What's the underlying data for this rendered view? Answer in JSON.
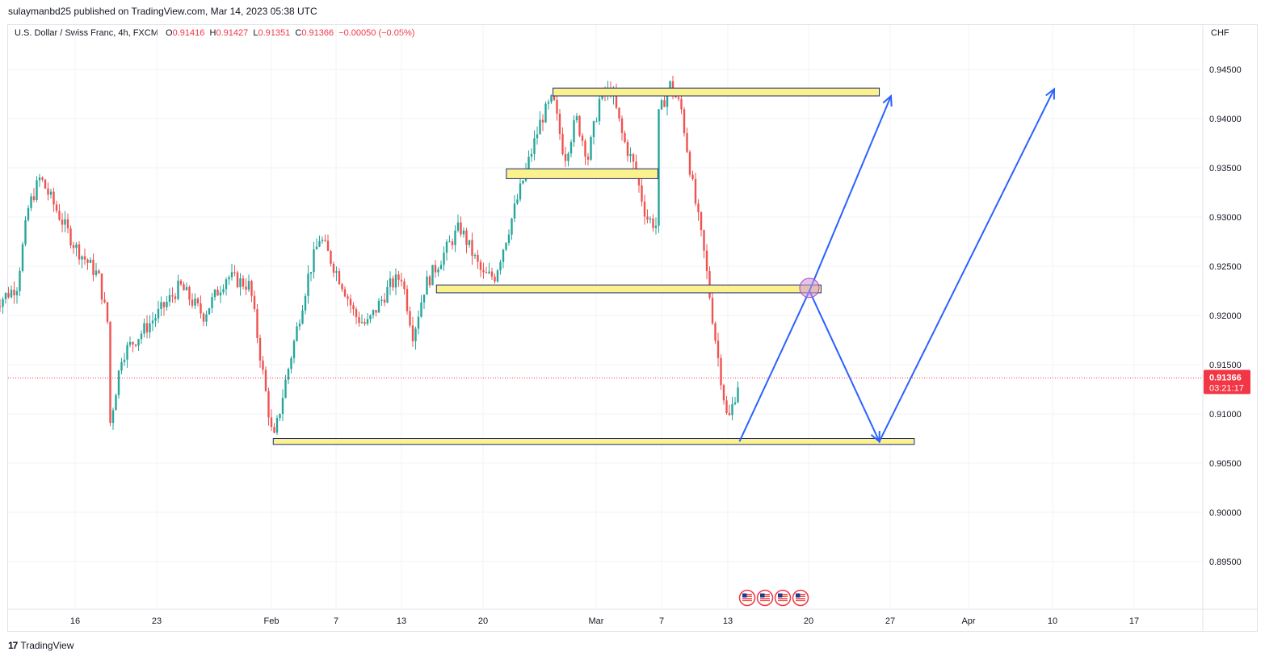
{
  "header": {
    "publisher_line": "sulaymanbd25 published on TradingView.com, Mar 14, 2023 05:38 UTC"
  },
  "legend": {
    "symbol": "U.S. Dollar / Swiss Franc, 4h, FXCM",
    "o_label": "O",
    "o_value": "0.91416",
    "h_label": "H",
    "h_value": "0.91427",
    "l_label": "L",
    "l_value": "0.91351",
    "c_label": "C",
    "c_value": "0.91366",
    "change": "−0.00050 (−0.05%)"
  },
  "currency_label": "CHF",
  "price_tag": {
    "price": "0.91366",
    "countdown": "03:21:17"
  },
  "footer": {
    "brand": "TradingView",
    "logo_glyph": "17"
  },
  "colors": {
    "up": "#26a69a",
    "down": "#ef5350",
    "zone_fill": "#fcf28c",
    "zone_stroke": "#2962ff",
    "arrow": "#2962ff",
    "price_line": "#f23645",
    "grid": "#f0f3fa"
  },
  "icons": [
    "us-flag-event-icon",
    "us-flag-event-icon",
    "us-flag-event-icon",
    "us-flag-event-icon"
  ],
  "chart_data": {
    "type": "candlestick",
    "symbol": "USDCHF",
    "timeframe": "4h",
    "y_axis": {
      "ticks": [
        "0.94500",
        "0.94000",
        "0.93500",
        "0.93000",
        "0.92500",
        "0.92000",
        "0.91500",
        "0.91000",
        "0.90500",
        "0.90000",
        "0.89500"
      ],
      "ylim": [
        0.891,
        0.9485
      ]
    },
    "x_axis": {
      "ticks": [
        "16",
        "23",
        "Feb",
        "7",
        "13",
        "20",
        "Mar",
        "7",
        "13",
        "20",
        "27",
        "Apr",
        "10",
        "17"
      ]
    },
    "current_price": 0.91366,
    "price_path": [
      {
        "date": "2023-01-09",
        "price": 0.921
      },
      {
        "date": "2023-01-11",
        "price": 0.923
      },
      {
        "date": "2023-01-12",
        "price": 0.931
      },
      {
        "date": "2023-01-13",
        "price": 0.934
      },
      {
        "date": "2023-01-16",
        "price": 0.927
      },
      {
        "date": "2023-01-18",
        "price": 0.924
      },
      {
        "date": "2023-01-19",
        "price": 0.918
      },
      {
        "date": "2023-01-19",
        "price": 0.909
      },
      {
        "date": "2023-01-20",
        "price": 0.916
      },
      {
        "date": "2023-01-23",
        "price": 0.92
      },
      {
        "date": "2023-01-25",
        "price": 0.923
      },
      {
        "date": "2023-01-27",
        "price": 0.92
      },
      {
        "date": "2023-01-29",
        "price": 0.924
      },
      {
        "date": "2023-01-31",
        "price": 0.923
      },
      {
        "date": "2023-02-01",
        "price": 0.915
      },
      {
        "date": "2023-02-02",
        "price": 0.907
      },
      {
        "date": "2023-02-03",
        "price": 0.913
      },
      {
        "date": "2023-02-05",
        "price": 0.924
      },
      {
        "date": "2023-02-06",
        "price": 0.928
      },
      {
        "date": "2023-02-08",
        "price": 0.923
      },
      {
        "date": "2023-02-09",
        "price": 0.92
      },
      {
        "date": "2023-02-10",
        "price": 0.919
      },
      {
        "date": "2023-02-12",
        "price": 0.923
      },
      {
        "date": "2023-02-13",
        "price": 0.924
      },
      {
        "date": "2023-02-14",
        "price": 0.918
      },
      {
        "date": "2023-02-15",
        "price": 0.923
      },
      {
        "date": "2023-02-16",
        "price": 0.925
      },
      {
        "date": "2023-02-18",
        "price": 0.929
      },
      {
        "date": "2023-02-20",
        "price": 0.924
      },
      {
        "date": "2023-02-21",
        "price": 0.924
      },
      {
        "date": "2023-02-22",
        "price": 0.928
      },
      {
        "date": "2023-02-23",
        "price": 0.932
      },
      {
        "date": "2023-02-24",
        "price": 0.936
      },
      {
        "date": "2023-02-25",
        "price": 0.94
      },
      {
        "date": "2023-02-26",
        "price": 0.942
      },
      {
        "date": "2023-02-27",
        "price": 0.936
      },
      {
        "date": "2023-02-28",
        "price": 0.94
      },
      {
        "date": "2023-03-01",
        "price": 0.936
      },
      {
        "date": "2023-03-02",
        "price": 0.942
      },
      {
        "date": "2023-03-03",
        "price": 0.943
      },
      {
        "date": "2023-03-04",
        "price": 0.938
      },
      {
        "date": "2023-03-05",
        "price": 0.935
      },
      {
        "date": "2023-03-06",
        "price": 0.93
      },
      {
        "date": "2023-03-07",
        "price": 0.929
      },
      {
        "date": "2023-03-07",
        "price": 0.94
      },
      {
        "date": "2023-03-08",
        "price": 0.9435
      },
      {
        "date": "2023-03-09",
        "price": 0.941
      },
      {
        "date": "2023-03-10",
        "price": 0.933
      },
      {
        "date": "2023-03-11",
        "price": 0.926
      },
      {
        "date": "2023-03-12",
        "price": 0.917
      },
      {
        "date": "2023-03-13",
        "price": 0.909
      },
      {
        "date": "2023-03-14",
        "price": 0.9137
      }
    ],
    "zones": [
      {
        "from": "2023-02-26",
        "to": "2023-03-26",
        "low": 0.9423,
        "high": 0.9431
      },
      {
        "from": "2023-02-22",
        "to": "2023-03-07",
        "low": 0.9339,
        "high": 0.9349
      },
      {
        "from": "2023-02-16",
        "to": "2023-03-21",
        "low": 0.9223,
        "high": 0.9231
      },
      {
        "from": "2023-02-02",
        "to": "2023-03-29",
        "low": 0.9069,
        "high": 0.9075
      }
    ],
    "projection_path": [
      {
        "date": "2023-03-14",
        "price": 0.9072
      },
      {
        "date": "2023-03-20",
        "price": 0.9225
      },
      {
        "date": "2023-03-26",
        "price": 0.9072
      },
      {
        "date": "2023-04-10",
        "price": 0.943
      }
    ],
    "projection_path_2": [
      {
        "date": "2023-03-20",
        "price": 0.9225
      },
      {
        "date": "2023-03-27",
        "price": 0.9423
      }
    ],
    "circle_marker": {
      "date": "2023-03-20",
      "price": 0.9228
    }
  }
}
